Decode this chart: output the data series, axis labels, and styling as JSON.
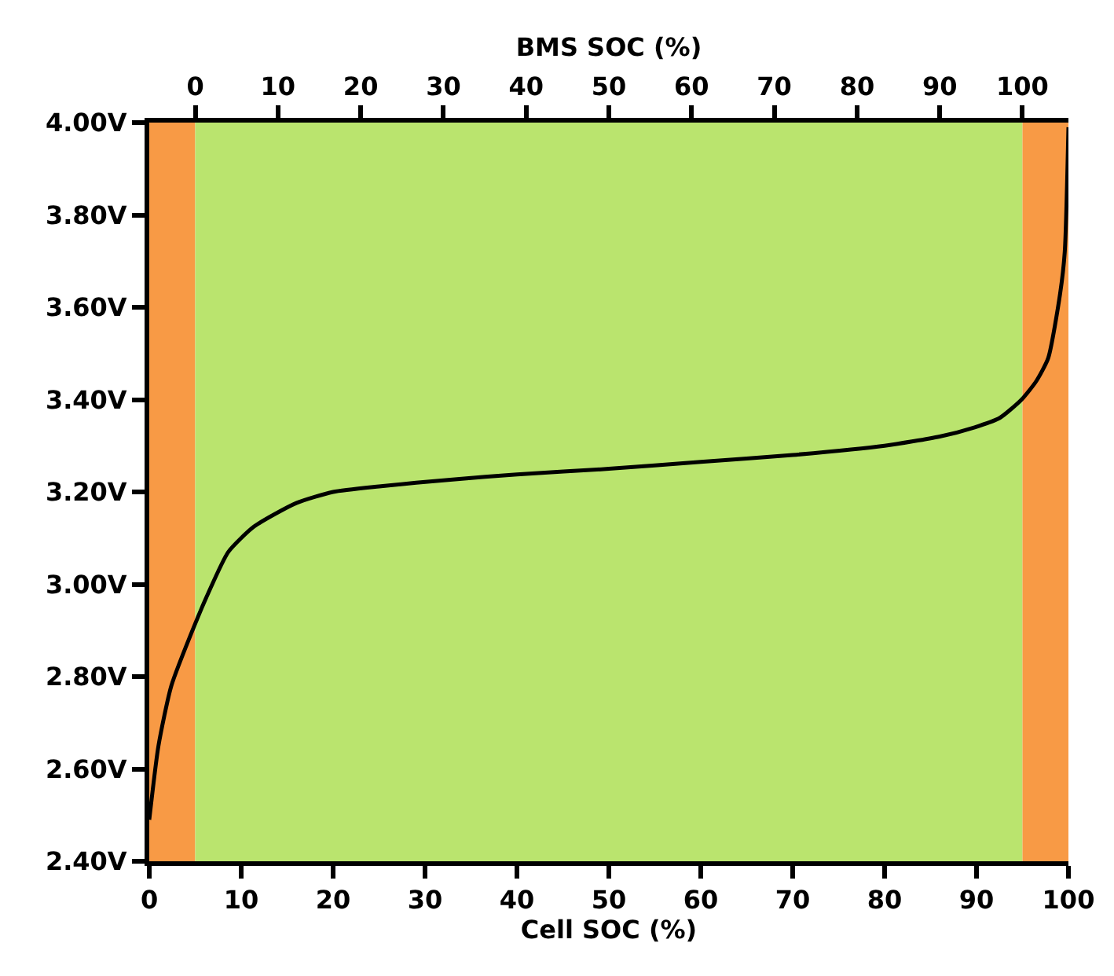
{
  "chart_data": {
    "type": "line",
    "xlabel": "Cell SOC (%)",
    "x2label": "BMS SOC (%)",
    "x": [
      0,
      1,
      2.4,
      4.9,
      6.4,
      8.6,
      11.4,
      16,
      20,
      25,
      33,
      40,
      50,
      60,
      70,
      80,
      86,
      89.8,
      92.5,
      94.9,
      96.5,
      97.8,
      99.1,
      99.6,
      100
    ],
    "series": [
      {
        "color": "#000000",
        "values": [
          2.49,
          2.65,
          2.78,
          2.91,
          2.98,
          3.07,
          3.125,
          3.176,
          3.2,
          3.212,
          3.227,
          3.238,
          3.25,
          3.265,
          3.28,
          3.3,
          3.32,
          3.34,
          3.36,
          3.4,
          3.44,
          3.49,
          3.63,
          3.72,
          3.99
        ]
      }
    ],
    "xlim": [
      0,
      100
    ],
    "xticks": [
      0,
      10,
      20,
      30,
      40,
      50,
      60,
      70,
      80,
      90,
      100
    ],
    "x2lim": [
      -5.56,
      105.56
    ],
    "x2ticks": [
      0,
      10,
      20,
      30,
      40,
      50,
      60,
      70,
      80,
      90,
      100
    ],
    "ylim": [
      2.4,
      4.0
    ],
    "yticks": [
      {
        "value": 2.4,
        "label": "2.40V"
      },
      {
        "value": 2.6,
        "label": "2.60V"
      },
      {
        "value": 2.8,
        "label": "2.80V"
      },
      {
        "value": 3.0,
        "label": "3.00V"
      },
      {
        "value": 3.2,
        "label": "3.20V"
      },
      {
        "value": 3.4,
        "label": "3.40V"
      },
      {
        "value": 3.6,
        "label": "3.60V"
      },
      {
        "value": 3.8,
        "label": "3.80V"
      },
      {
        "value": 4.0,
        "label": "4.00V"
      }
    ],
    "bands": [
      {
        "axis": "x",
        "from": 0,
        "to": 5,
        "color": "#f89a45"
      },
      {
        "axis": "x",
        "from": 5,
        "to": 95,
        "color": "#bae46e"
      },
      {
        "axis": "x",
        "from": 95,
        "to": 100,
        "color": "#f89a45"
      }
    ],
    "grid": false,
    "marker": "none",
    "line_style": "solid"
  }
}
